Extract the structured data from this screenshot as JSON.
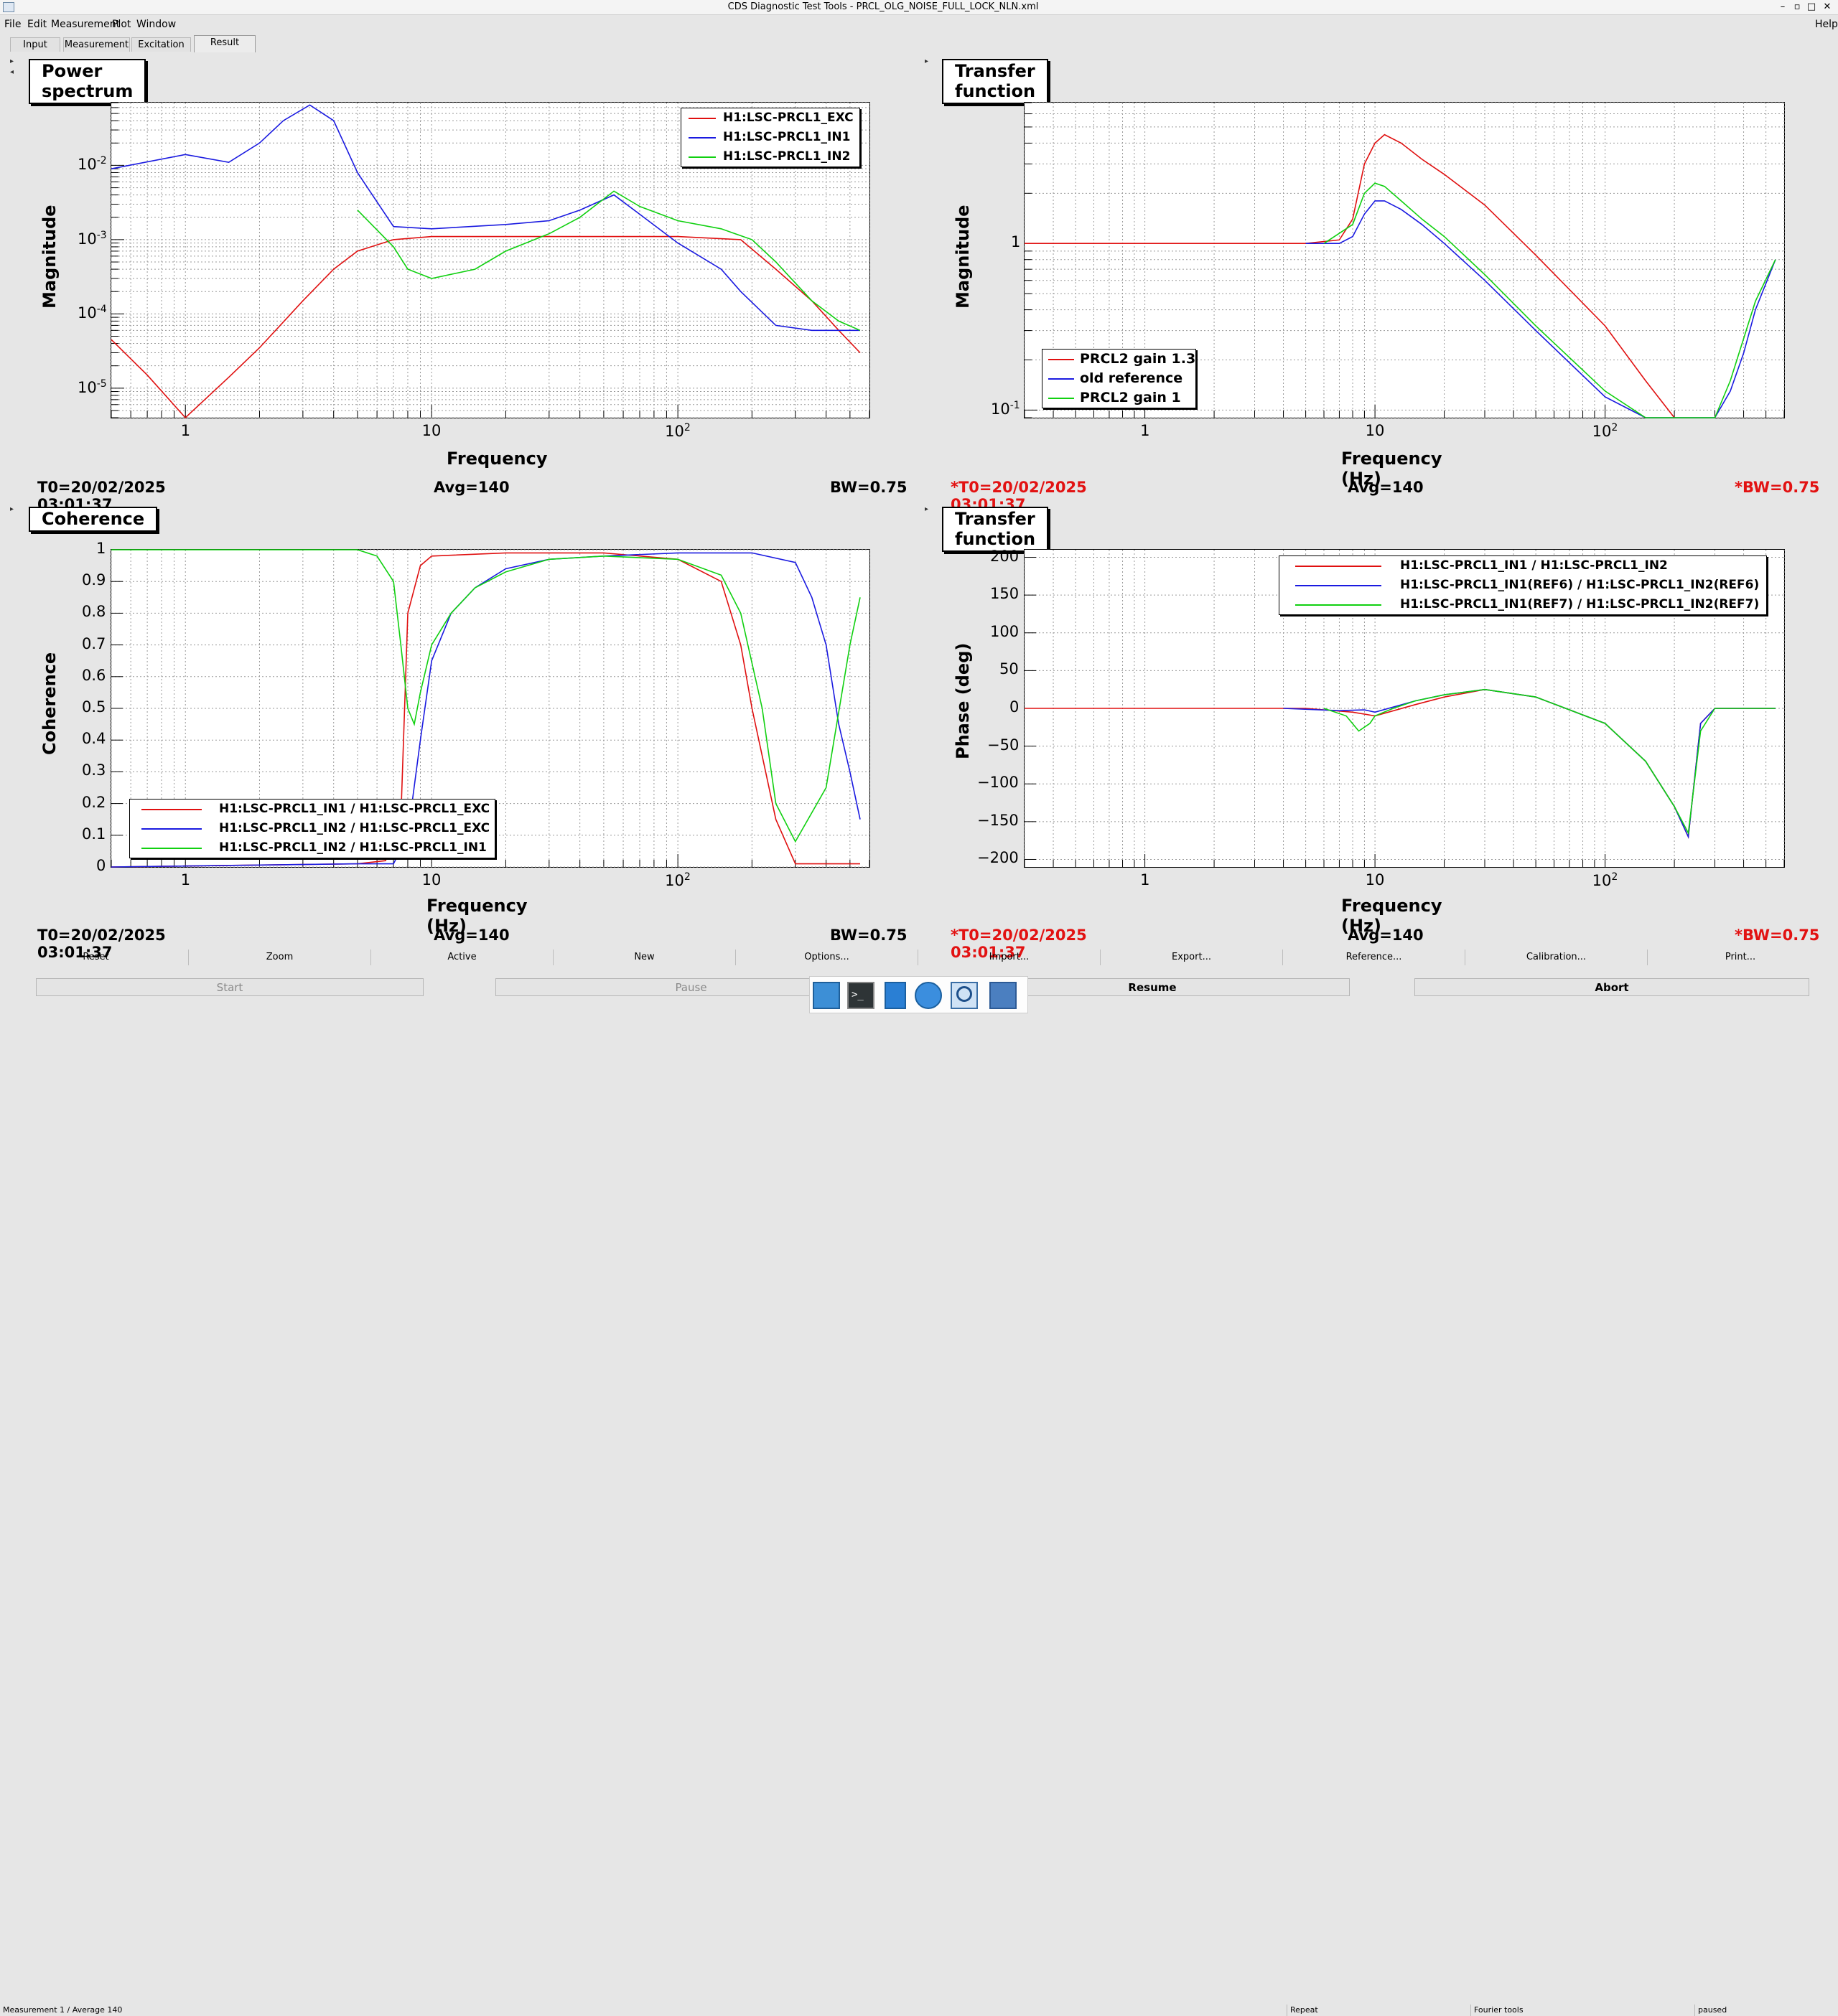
{
  "window": {
    "title": "CDS Diagnostic Test Tools - PRCL_OLG_NOISE_FULL_LOCK_NLN.xml",
    "minimize_glyph": "–",
    "restore_glyph": "▫",
    "maximize_glyph": "□",
    "close_glyph": "✕"
  },
  "menu": {
    "items": [
      "File",
      "Edit",
      "Measurement",
      "Plot",
      "Window"
    ],
    "help": "Help"
  },
  "tabs": [
    {
      "label": "Input"
    },
    {
      "label": "Measurement"
    },
    {
      "label": "Excitation"
    },
    {
      "label": "Result",
      "active": true
    }
  ],
  "panels": [
    {
      "title": "Power spectrum",
      "xlabel": "Frequency",
      "ylabel": "Magnitude",
      "status": {
        "t0": "T0=20/02/2025 03:01:37",
        "avg": "Avg=140",
        "bw": "BW=0.75"
      },
      "legend": [
        "H1:LSC-PRCL1_EXC",
        "H1:LSC-PRCL1_IN1",
        "H1:LSC-PRCL1_IN2"
      ]
    },
    {
      "title": "Transfer function",
      "xlabel": "Frequency (Hz)",
      "ylabel": "Magnitude",
      "status": {
        "t0": "*T0=20/02/2025 03:01:37",
        "avg": "Avg=140",
        "bw": "*BW=0.75"
      },
      "legend": [
        "PRCL2 gain 1.3",
        "old reference",
        "PRCL2 gain 1"
      ]
    },
    {
      "title": "Coherence",
      "xlabel": "Frequency (Hz)",
      "ylabel": "Coherence",
      "status": {
        "t0": "T0=20/02/2025 03:01:37",
        "avg": "Avg=140",
        "bw": "BW=0.75"
      },
      "legend": [
        "H1:LSC-PRCL1_IN1 / H1:LSC-PRCL1_EXC",
        "H1:LSC-PRCL1_IN2 / H1:LSC-PRCL1_EXC",
        "H1:LSC-PRCL1_IN2 / H1:LSC-PRCL1_IN1"
      ]
    },
    {
      "title": "Transfer function",
      "xlabel": "Frequency (Hz)",
      "ylabel": "Phase (deg)",
      "status": {
        "t0": "*T0=20/02/2025 03:01:37",
        "avg": "Avg=140",
        "bw": "*BW=0.75"
      },
      "legend": [
        "H1:LSC-PRCL1_IN1 / H1:LSC-PRCL1_IN2",
        "H1:LSC-PRCL1_IN1(REF6) / H1:LSC-PRCL1_IN2(REF6)",
        "H1:LSC-PRCL1_IN1(REF7) / H1:LSC-PRCL1_IN2(REF7)"
      ]
    }
  ],
  "series_colors": [
    "#e01010",
    "#1a1ae0",
    "#10d010"
  ],
  "chart_data": [
    {
      "type": "line",
      "title": "Power spectrum",
      "xlabel": "Frequency",
      "ylabel": "Magnitude",
      "xscale": "log",
      "yscale": "log",
      "xlim": [
        0.5,
        600
      ],
      "ylim": [
        4e-06,
        0.07
      ],
      "xticks": [
        1,
        10,
        100
      ],
      "xtick_labels": [
        "1",
        "10",
        "10",
        "2"
      ],
      "yticks": [
        1e-05,
        0.0001,
        0.001,
        0.01
      ],
      "ytick_labels": [
        {
          "base": "10",
          "exp": "-5"
        },
        {
          "base": "10",
          "exp": "-4"
        },
        {
          "base": "10",
          "exp": "-3"
        },
        {
          "base": "10",
          "exp": "-2"
        }
      ],
      "grid": true,
      "legend_position": "top-right",
      "series": [
        {
          "name": "H1:LSC-PRCL1_EXC",
          "x": [
            0.5,
            0.7,
            1,
            1.5,
            2,
            3,
            4,
            5,
            7,
            10,
            20,
            50,
            100,
            180,
            250,
            350,
            450,
            550
          ],
          "y": [
            4.5e-05,
            1.5e-05,
            4e-06,
            1.4e-05,
            3.5e-05,
            0.00015,
            0.0004,
            0.0007,
            0.001,
            0.0011,
            0.0011,
            0.0011,
            0.0011,
            0.001,
            0.0004,
            0.00015,
            6e-05,
            3e-05
          ]
        },
        {
          "name": "H1:LSC-PRCL1_IN1",
          "x": [
            0.5,
            1,
            1.5,
            2,
            2.5,
            3.2,
            4,
            5,
            7,
            10,
            20,
            30,
            40,
            55,
            70,
            100,
            150,
            180,
            250,
            350,
            450,
            550
          ],
          "y": [
            0.009,
            0.014,
            0.011,
            0.02,
            0.04,
            0.065,
            0.04,
            0.008,
            0.0015,
            0.0014,
            0.0016,
            0.0018,
            0.0025,
            0.004,
            0.0022,
            0.0009,
            0.0004,
            0.0002,
            7e-05,
            6e-05,
            6e-05,
            6e-05
          ]
        },
        {
          "name": "H1:LSC-PRCL1_IN2",
          "x": [
            5,
            7,
            8,
            10,
            15,
            20,
            30,
            40,
            55,
            70,
            100,
            150,
            200,
            250,
            350,
            450,
            550
          ],
          "y": [
            0.0025,
            0.0008,
            0.0004,
            0.0003,
            0.0004,
            0.0007,
            0.0012,
            0.002,
            0.0045,
            0.0028,
            0.0018,
            0.0014,
            0.001,
            0.0005,
            0.00015,
            8e-05,
            6e-05
          ]
        }
      ]
    },
    {
      "type": "line",
      "title": "Transfer function",
      "xlabel": "Frequency (Hz)",
      "ylabel": "Magnitude",
      "xscale": "log",
      "yscale": "log",
      "xlim": [
        0.3,
        600
      ],
      "ylim": [
        0.09,
        7
      ],
      "xticks": [
        1,
        10,
        100
      ],
      "xtick_labels": [
        "1",
        "10",
        "10",
        "2"
      ],
      "yticks": [
        0.1,
        1
      ],
      "ytick_labels": [
        {
          "base": "10",
          "exp": "-1"
        },
        {
          "base": "1",
          "exp": ""
        }
      ],
      "grid": true,
      "legend_position": "bottom-left",
      "series": [
        {
          "name": "PRCL2 gain 1.3",
          "x": [
            0.3,
            5,
            7,
            8,
            9,
            10,
            11,
            13,
            16,
            20,
            30,
            50,
            100,
            150,
            200
          ],
          "y": [
            1,
            1,
            1.05,
            1.4,
            3,
            4,
            4.5,
            4,
            3.2,
            2.6,
            1.7,
            0.85,
            0.32,
            0.15,
            0.09
          ]
        },
        {
          "name": "old reference",
          "x": [
            5,
            7,
            8,
            9,
            10,
            11,
            13,
            16,
            20,
            30,
            50,
            100,
            150,
            300,
            350,
            400,
            450,
            550
          ],
          "y": [
            1,
            1,
            1.1,
            1.5,
            1.8,
            1.8,
            1.6,
            1.3,
            1,
            0.6,
            0.3,
            0.12,
            0.09,
            0.09,
            0.13,
            0.22,
            0.4,
            0.8
          ]
        },
        {
          "name": "PRCL2 gain 1",
          "x": [
            6,
            8,
            9,
            10,
            11,
            13,
            16,
            20,
            30,
            50,
            100,
            150,
            300,
            350,
            450,
            550
          ],
          "y": [
            1,
            1.3,
            2,
            2.3,
            2.2,
            1.8,
            1.4,
            1.1,
            0.65,
            0.32,
            0.13,
            0.09,
            0.09,
            0.15,
            0.45,
            0.8
          ]
        }
      ]
    },
    {
      "type": "line",
      "title": "Coherence",
      "xlabel": "Frequency (Hz)",
      "ylabel": "Coherence",
      "xscale": "log",
      "yscale": "linear",
      "xlim": [
        0.5,
        600
      ],
      "ylim": [
        0,
        1
      ],
      "xticks": [
        1,
        10,
        100
      ],
      "xtick_labels": [
        "1",
        "10",
        "10",
        "2"
      ],
      "yticks": [
        0,
        0.1,
        0.2,
        0.3,
        0.4,
        0.5,
        0.6,
        0.7,
        0.8,
        0.9,
        1
      ],
      "ytick_labels": [
        "0",
        "0.1",
        "0.2",
        "0.3",
        "0.4",
        "0.5",
        "0.6",
        "0.7",
        "0.8",
        "0.9",
        "1"
      ],
      "grid": true,
      "legend_position": "bottom-left",
      "series": [
        {
          "name": "H1:LSC-PRCL1_IN1 / H1:LSC-PRCL1_EXC",
          "x": [
            0.5,
            5,
            6.5,
            7.5,
            8,
            9,
            10,
            20,
            50,
            100,
            150,
            180,
            200,
            250,
            300,
            400,
            550
          ],
          "y": [
            0,
            0.01,
            0.02,
            0.15,
            0.8,
            0.95,
            0.98,
            0.99,
            0.99,
            0.97,
            0.9,
            0.7,
            0.5,
            0.15,
            0.01,
            0.01,
            0.01
          ]
        },
        {
          "name": "H1:LSC-PRCL1_IN2 / H1:LSC-PRCL1_EXC",
          "x": [
            0.5,
            5,
            7,
            8,
            9,
            10,
            12,
            15,
            20,
            30,
            50,
            100,
            200,
            300,
            350,
            400,
            450,
            500,
            550
          ],
          "y": [
            0,
            0.01,
            0.01,
            0.1,
            0.4,
            0.65,
            0.8,
            0.88,
            0.94,
            0.97,
            0.98,
            0.99,
            0.99,
            0.96,
            0.85,
            0.7,
            0.45,
            0.3,
            0.15
          ]
        },
        {
          "name": "H1:LSC-PRCL1_IN2 / H1:LSC-PRCL1_IN1",
          "x": [
            0.5,
            5,
            6,
            7,
            7.5,
            8,
            8.5,
            9,
            10,
            12,
            15,
            20,
            30,
            50,
            100,
            150,
            180,
            220,
            250,
            300,
            400,
            500,
            550
          ],
          "y": [
            1,
            1,
            0.98,
            0.9,
            0.7,
            0.5,
            0.45,
            0.55,
            0.7,
            0.8,
            0.88,
            0.93,
            0.97,
            0.98,
            0.97,
            0.92,
            0.8,
            0.5,
            0.2,
            0.08,
            0.25,
            0.7,
            0.85
          ]
        }
      ]
    },
    {
      "type": "line",
      "title": "Transfer function",
      "xlabel": "Frequency (Hz)",
      "ylabel": "Phase (deg)",
      "xscale": "log",
      "yscale": "linear",
      "xlim": [
        0.3,
        600
      ],
      "ylim": [
        -210,
        210
      ],
      "xticks": [
        1,
        10,
        100
      ],
      "xtick_labels": [
        "1",
        "10",
        "10",
        "2"
      ],
      "yticks": [
        -200,
        -150,
        -100,
        -50,
        0,
        50,
        100,
        150,
        200
      ],
      "ytick_labels": [
        "−200",
        "−150",
        "−100",
        "−50",
        "0",
        "50",
        "100",
        "150",
        "200"
      ],
      "grid": true,
      "legend_position": "top-right",
      "series": [
        {
          "name": "H1:LSC-PRCL1_IN1 / H1:LSC-PRCL1_IN2",
          "x": [
            0.3,
            5,
            8,
            10,
            15,
            20,
            30,
            50,
            100,
            150,
            200,
            230,
            260,
            300,
            400,
            550
          ],
          "y": [
            0,
            0,
            -5,
            -10,
            5,
            15,
            25,
            15,
            -20,
            -70,
            -130,
            -170,
            -20,
            0,
            0,
            0
          ]
        },
        {
          "name": "H1:LSC-PRCL1_IN1(REF6) / H1:LSC-PRCL1_IN2(REF6)",
          "x": [
            4,
            7,
            9,
            10,
            15,
            20,
            30,
            50,
            100,
            150,
            200,
            230,
            260,
            300,
            400,
            550
          ],
          "y": [
            0,
            -3,
            -2,
            -5,
            10,
            18,
            25,
            15,
            -20,
            -70,
            -130,
            -170,
            -20,
            0,
            0,
            0
          ]
        },
        {
          "name": "H1:LSC-PRCL1_IN1(REF7) / H1:LSC-PRCL1_IN2(REF7)",
          "x": [
            6,
            7.5,
            8.5,
            9.5,
            10,
            12,
            15,
            20,
            30,
            50,
            100,
            150,
            200,
            230,
            260,
            300,
            400,
            550
          ],
          "y": [
            0,
            -10,
            -30,
            -20,
            -10,
            0,
            10,
            18,
            25,
            15,
            -20,
            -70,
            -130,
            -165,
            -30,
            0,
            0,
            0
          ]
        }
      ]
    }
  ],
  "bottom_buttons": [
    "Reset",
    "Zoom",
    "Active",
    "New",
    "Options...",
    "Import...",
    "Export...",
    "Reference...",
    "Calibration...",
    "Print..."
  ],
  "controls": {
    "start": "Start",
    "pause": "Pause",
    "resume": "Resume",
    "abort": "Abort"
  },
  "statusbar": {
    "measurement": "Measurement 1 / Average 140",
    "repeat": "Repeat",
    "fourier": "Fourier tools",
    "state": "paused"
  },
  "taskbar_icons": [
    "desktop-icon",
    "terminal-icon",
    "file-manager-icon",
    "browser-icon",
    "search-icon",
    "folder-icon"
  ]
}
